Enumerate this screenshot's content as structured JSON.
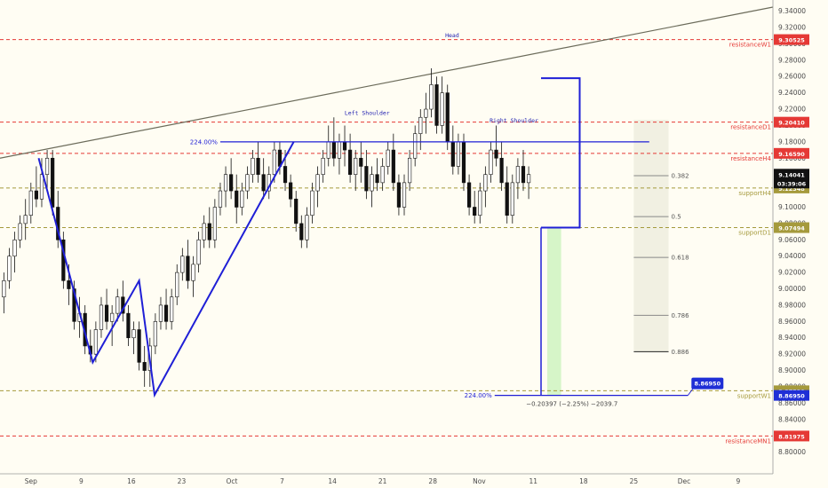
{
  "chart_data": {
    "type": "candlestick",
    "ylim": [
      8.78,
      9.345
    ],
    "x_range": [
      0,
      100
    ],
    "price_ticks": [
      "9.34000",
      "9.32000",
      "9.30000",
      "9.28000",
      "9.26000",
      "9.24000",
      "9.22000",
      "9.20000",
      "9.18000",
      "9.16000",
      "9.14000",
      "9.12000",
      "9.10000",
      "9.08000",
      "9.06000",
      "9.04000",
      "9.02000",
      "9.00000",
      "8.98000",
      "8.96000",
      "8.94000",
      "8.92000",
      "8.90000",
      "8.88000",
      "8.86000",
      "8.84000",
      "8.82000",
      "8.80000"
    ],
    "time_ticks": [
      {
        "label": "Sep",
        "x": 4
      },
      {
        "label": "9",
        "x": 10.5
      },
      {
        "label": "16",
        "x": 17
      },
      {
        "label": "23",
        "x": 23.5
      },
      {
        "label": "Oct",
        "x": 30
      },
      {
        "label": "7",
        "x": 36.5
      },
      {
        "label": "14",
        "x": 43
      },
      {
        "label": "21",
        "x": 49.5
      },
      {
        "label": "28",
        "x": 56
      },
      {
        "label": "Nov",
        "x": 62
      },
      {
        "label": "11",
        "x": 69
      },
      {
        "label": "18",
        "x": 75.5
      },
      {
        "label": "25",
        "x": 82
      },
      {
        "label": "Dec",
        "x": 88.5
      },
      {
        "label": "9",
        "x": 95.5
      }
    ],
    "levels": [
      {
        "name": "resistanceW1",
        "value": "9.30525",
        "price": 9.30525,
        "color": "#e53935",
        "style": "dashed"
      },
      {
        "name": "resistanceD1",
        "value": "9.20410",
        "price": 9.2041,
        "color": "#e53935",
        "style": "dashed"
      },
      {
        "name": "resistanceH4",
        "value": "9.16590",
        "price": 9.1659,
        "color": "#e53935",
        "style": "dashed"
      },
      {
        "name": "supportH4",
        "value": "9.12348",
        "price": 9.12348,
        "color": "#a59a3c",
        "style": "dashed"
      },
      {
        "name": "supportD1",
        "value": "9.07494",
        "price": 9.07494,
        "color": "#a59a3c",
        "style": "dashed"
      },
      {
        "name": "supportW1",
        "value": "8.87520",
        "price": 8.8752,
        "color": "#a59a3c",
        "style": "dashed"
      },
      {
        "name": "resistanceMN1",
        "value": "8.81975",
        "price": 8.81975,
        "color": "#e53935",
        "style": "dashed"
      }
    ],
    "current_price": {
      "value": "9.14041",
      "price": 9.14041,
      "timer": "03:39:06"
    },
    "target": {
      "value": "8.86950",
      "price": 8.8695
    },
    "annotations": [
      {
        "text": "Head",
        "x": 58.5,
        "price": 9.308
      },
      {
        "text": "Left Shoulder",
        "x": 47.5,
        "price": 9.213
      },
      {
        "text": "Right Shoulder",
        "x": 66.5,
        "price": 9.204
      }
    ],
    "neckline": {
      "label": "224.00%",
      "price": 9.18,
      "x_start": 28.5,
      "x_end": 84
    },
    "projection": {
      "label": "224.00%",
      "price": 8.8695,
      "x_start": 64,
      "x_end": 89,
      "stats": "−0.20397 (−2.25%) −2039.7"
    },
    "trendline": {
      "x1": 0,
      "p1": 9.16,
      "x2": 100,
      "p2": 9.345
    },
    "fib": {
      "x1": 82,
      "x2": 86.5,
      "top": 9.207,
      "bottom": 8.923,
      "levels": [
        {
          "label": "0.382",
          "price": 9.1385
        },
        {
          "label": "0.5",
          "price": 9.0885
        },
        {
          "label": "0.618",
          "price": 9.0385
        },
        {
          "label": "0.786",
          "price": 8.9675
        },
        {
          "label": "0.886",
          "price": 8.923
        }
      ]
    },
    "pattern_legs": [
      {
        "points": [
          [
            5,
            9.16
          ],
          [
            12,
            8.91
          ],
          [
            18,
            9.01
          ],
          [
            20,
            8.87
          ],
          [
            38,
            9.18
          ]
        ]
      }
    ],
    "box": {
      "x1": 70,
      "x2": 75,
      "p_top": 9.258,
      "p_bottom": 9.075
    },
    "candles": [
      {
        "x": 0.5,
        "o": 8.99,
        "h": 9.02,
        "l": 8.97,
        "c": 9.01
      },
      {
        "x": 1.2,
        "o": 9.01,
        "h": 9.05,
        "l": 9.0,
        "c": 9.04
      },
      {
        "x": 1.9,
        "o": 9.04,
        "h": 9.07,
        "l": 9.02,
        "c": 9.06
      },
      {
        "x": 2.6,
        "o": 9.06,
        "h": 9.09,
        "l": 9.05,
        "c": 9.08
      },
      {
        "x": 3.3,
        "o": 9.08,
        "h": 9.11,
        "l": 9.06,
        "c": 9.09
      },
      {
        "x": 4.0,
        "o": 9.09,
        "h": 9.13,
        "l": 9.08,
        "c": 9.12
      },
      {
        "x": 4.7,
        "o": 9.12,
        "h": 9.15,
        "l": 9.1,
        "c": 9.11
      },
      {
        "x": 5.4,
        "o": 9.11,
        "h": 9.16,
        "l": 9.1,
        "c": 9.14
      },
      {
        "x": 6.1,
        "o": 9.14,
        "h": 9.17,
        "l": 9.12,
        "c": 9.16
      },
      {
        "x": 6.8,
        "o": 9.16,
        "h": 9.17,
        "l": 9.09,
        "c": 9.1
      },
      {
        "x": 7.5,
        "o": 9.1,
        "h": 9.12,
        "l": 9.05,
        "c": 9.06
      },
      {
        "x": 8.2,
        "o": 9.06,
        "h": 9.07,
        "l": 9.0,
        "c": 9.01
      },
      {
        "x": 8.9,
        "o": 9.01,
        "h": 9.03,
        "l": 8.98,
        "c": 9.0
      },
      {
        "x": 9.6,
        "o": 9.0,
        "h": 9.01,
        "l": 8.95,
        "c": 8.96
      },
      {
        "x": 10.3,
        "o": 8.96,
        "h": 8.99,
        "l": 8.94,
        "c": 8.97
      },
      {
        "x": 11.0,
        "o": 8.97,
        "h": 8.98,
        "l": 8.92,
        "c": 8.93
      },
      {
        "x": 11.7,
        "o": 8.93,
        "h": 8.95,
        "l": 8.91,
        "c": 8.92
      },
      {
        "x": 12.4,
        "o": 8.92,
        "h": 8.96,
        "l": 8.91,
        "c": 8.95
      },
      {
        "x": 13.1,
        "o": 8.95,
        "h": 8.99,
        "l": 8.94,
        "c": 8.98
      },
      {
        "x": 13.8,
        "o": 8.98,
        "h": 9.0,
        "l": 8.95,
        "c": 8.96
      },
      {
        "x": 14.5,
        "o": 8.96,
        "h": 8.98,
        "l": 8.93,
        "c": 8.97
      },
      {
        "x": 15.2,
        "o": 8.97,
        "h": 9.0,
        "l": 8.96,
        "c": 8.99
      },
      {
        "x": 15.9,
        "o": 8.99,
        "h": 9.01,
        "l": 8.96,
        "c": 8.97
      },
      {
        "x": 16.6,
        "o": 8.97,
        "h": 8.98,
        "l": 8.93,
        "c": 8.94
      },
      {
        "x": 17.3,
        "o": 8.94,
        "h": 8.96,
        "l": 8.92,
        "c": 8.95
      },
      {
        "x": 18.0,
        "o": 8.95,
        "h": 8.96,
        "l": 8.9,
        "c": 8.91
      },
      {
        "x": 18.7,
        "o": 8.91,
        "h": 8.93,
        "l": 8.88,
        "c": 8.9
      },
      {
        "x": 19.4,
        "o": 8.9,
        "h": 8.94,
        "l": 8.88,
        "c": 8.93
      },
      {
        "x": 20.1,
        "o": 8.93,
        "h": 8.97,
        "l": 8.92,
        "c": 8.96
      },
      {
        "x": 20.8,
        "o": 8.96,
        "h": 8.99,
        "l": 8.95,
        "c": 8.98
      },
      {
        "x": 21.5,
        "o": 8.98,
        "h": 9.0,
        "l": 8.95,
        "c": 8.96
      },
      {
        "x": 22.2,
        "o": 8.96,
        "h": 9.0,
        "l": 8.95,
        "c": 8.99
      },
      {
        "x": 22.9,
        "o": 8.99,
        "h": 9.03,
        "l": 8.98,
        "c": 9.02
      },
      {
        "x": 23.6,
        "o": 9.02,
        "h": 9.05,
        "l": 9.01,
        "c": 9.04
      },
      {
        "x": 24.3,
        "o": 9.04,
        "h": 9.06,
        "l": 9.0,
        "c": 9.01
      },
      {
        "x": 25.0,
        "o": 9.01,
        "h": 9.04,
        "l": 8.99,
        "c": 9.03
      },
      {
        "x": 25.7,
        "o": 9.03,
        "h": 9.07,
        "l": 9.02,
        "c": 9.06
      },
      {
        "x": 26.4,
        "o": 9.06,
        "h": 9.09,
        "l": 9.05,
        "c": 9.08
      },
      {
        "x": 27.1,
        "o": 9.08,
        "h": 9.1,
        "l": 9.05,
        "c": 9.06
      },
      {
        "x": 27.8,
        "o": 9.06,
        "h": 9.11,
        "l": 9.05,
        "c": 9.1
      },
      {
        "x": 28.5,
        "o": 9.1,
        "h": 9.13,
        "l": 9.09,
        "c": 9.12
      },
      {
        "x": 29.2,
        "o": 9.12,
        "h": 9.15,
        "l": 9.1,
        "c": 9.14
      },
      {
        "x": 29.9,
        "o": 9.14,
        "h": 9.16,
        "l": 9.11,
        "c": 9.12
      },
      {
        "x": 30.6,
        "o": 9.12,
        "h": 9.14,
        "l": 9.08,
        "c": 9.1
      },
      {
        "x": 31.3,
        "o": 9.1,
        "h": 9.13,
        "l": 9.09,
        "c": 9.12
      },
      {
        "x": 32.0,
        "o": 9.12,
        "h": 9.15,
        "l": 9.11,
        "c": 9.14
      },
      {
        "x": 32.7,
        "o": 9.14,
        "h": 9.17,
        "l": 9.13,
        "c": 9.16
      },
      {
        "x": 33.4,
        "o": 9.16,
        "h": 9.18,
        "l": 9.13,
        "c": 9.14
      },
      {
        "x": 34.1,
        "o": 9.14,
        "h": 9.16,
        "l": 9.11,
        "c": 9.12
      },
      {
        "x": 34.8,
        "o": 9.12,
        "h": 9.15,
        "l": 9.11,
        "c": 9.14
      },
      {
        "x": 35.5,
        "o": 9.14,
        "h": 9.18,
        "l": 9.13,
        "c": 9.17
      },
      {
        "x": 36.2,
        "o": 9.17,
        "h": 9.18,
        "l": 9.14,
        "c": 9.15
      },
      {
        "x": 36.9,
        "o": 9.15,
        "h": 9.17,
        "l": 9.12,
        "c": 9.13
      },
      {
        "x": 37.6,
        "o": 9.13,
        "h": 9.14,
        "l": 9.1,
        "c": 9.11
      },
      {
        "x": 38.3,
        "o": 9.11,
        "h": 9.12,
        "l": 9.07,
        "c": 9.08
      },
      {
        "x": 39.0,
        "o": 9.08,
        "h": 9.09,
        "l": 9.05,
        "c": 9.06
      },
      {
        "x": 39.7,
        "o": 9.06,
        "h": 9.1,
        "l": 9.05,
        "c": 9.09
      },
      {
        "x": 40.4,
        "o": 9.09,
        "h": 9.13,
        "l": 9.08,
        "c": 9.12
      },
      {
        "x": 41.1,
        "o": 9.12,
        "h": 9.15,
        "l": 9.1,
        "c": 9.14
      },
      {
        "x": 41.8,
        "o": 9.14,
        "h": 9.17,
        "l": 9.13,
        "c": 9.16
      },
      {
        "x": 42.5,
        "o": 9.16,
        "h": 9.2,
        "l": 9.15,
        "c": 9.18
      },
      {
        "x": 43.2,
        "o": 9.18,
        "h": 9.21,
        "l": 9.15,
        "c": 9.16
      },
      {
        "x": 43.9,
        "o": 9.16,
        "h": 9.19,
        "l": 9.14,
        "c": 9.18
      },
      {
        "x": 44.6,
        "o": 9.18,
        "h": 9.2,
        "l": 9.15,
        "c": 9.17
      },
      {
        "x": 45.3,
        "o": 9.17,
        "h": 9.19,
        "l": 9.13,
        "c": 9.14
      },
      {
        "x": 46.0,
        "o": 9.14,
        "h": 9.17,
        "l": 9.12,
        "c": 9.16
      },
      {
        "x": 46.7,
        "o": 9.16,
        "h": 9.18,
        "l": 9.13,
        "c": 9.15
      },
      {
        "x": 47.4,
        "o": 9.15,
        "h": 9.17,
        "l": 9.11,
        "c": 9.12
      },
      {
        "x": 48.1,
        "o": 9.12,
        "h": 9.15,
        "l": 9.1,
        "c": 9.14
      },
      {
        "x": 48.8,
        "o": 9.14,
        "h": 9.16,
        "l": 9.12,
        "c": 9.13
      },
      {
        "x": 49.5,
        "o": 9.13,
        "h": 9.16,
        "l": 9.12,
        "c": 9.15
      },
      {
        "x": 50.2,
        "o": 9.15,
        "h": 9.18,
        "l": 9.14,
        "c": 9.17
      },
      {
        "x": 50.9,
        "o": 9.17,
        "h": 9.19,
        "l": 9.12,
        "c": 9.13
      },
      {
        "x": 51.6,
        "o": 9.13,
        "h": 9.14,
        "l": 9.09,
        "c": 9.1
      },
      {
        "x": 52.3,
        "o": 9.1,
        "h": 9.14,
        "l": 9.09,
        "c": 9.13
      },
      {
        "x": 53.0,
        "o": 9.13,
        "h": 9.17,
        "l": 9.12,
        "c": 9.16
      },
      {
        "x": 53.7,
        "o": 9.16,
        "h": 9.2,
        "l": 9.15,
        "c": 9.19
      },
      {
        "x": 54.4,
        "o": 9.19,
        "h": 9.22,
        "l": 9.17,
        "c": 9.21
      },
      {
        "x": 55.1,
        "o": 9.21,
        "h": 9.24,
        "l": 9.19,
        "c": 9.22
      },
      {
        "x": 55.8,
        "o": 9.22,
        "h": 9.27,
        "l": 9.21,
        "c": 9.25
      },
      {
        "x": 56.5,
        "o": 9.25,
        "h": 9.26,
        "l": 9.19,
        "c": 9.2
      },
      {
        "x": 57.2,
        "o": 9.2,
        "h": 9.26,
        "l": 9.19,
        "c": 9.24
      },
      {
        "x": 57.9,
        "o": 9.24,
        "h": 9.25,
        "l": 9.17,
        "c": 9.18
      },
      {
        "x": 58.6,
        "o": 9.18,
        "h": 9.2,
        "l": 9.14,
        "c": 9.15
      },
      {
        "x": 59.3,
        "o": 9.15,
        "h": 9.19,
        "l": 9.14,
        "c": 9.18
      },
      {
        "x": 60.0,
        "o": 9.18,
        "h": 9.19,
        "l": 9.12,
        "c": 9.13
      },
      {
        "x": 60.7,
        "o": 9.13,
        "h": 9.14,
        "l": 9.09,
        "c": 9.1
      },
      {
        "x": 61.4,
        "o": 9.1,
        "h": 9.12,
        "l": 9.08,
        "c": 9.09
      },
      {
        "x": 62.1,
        "o": 9.09,
        "h": 9.13,
        "l": 9.08,
        "c": 9.12
      },
      {
        "x": 62.8,
        "o": 9.12,
        "h": 9.15,
        "l": 9.1,
        "c": 9.14
      },
      {
        "x": 63.5,
        "o": 9.14,
        "h": 9.18,
        "l": 9.13,
        "c": 9.17
      },
      {
        "x": 64.2,
        "o": 9.17,
        "h": 9.2,
        "l": 9.15,
        "c": 9.16
      },
      {
        "x": 64.9,
        "o": 9.16,
        "h": 9.18,
        "l": 9.12,
        "c": 9.13
      },
      {
        "x": 65.6,
        "o": 9.13,
        "h": 9.15,
        "l": 9.08,
        "c": 9.09
      },
      {
        "x": 66.3,
        "o": 9.09,
        "h": 9.14,
        "l": 9.08,
        "c": 9.13
      },
      {
        "x": 67.0,
        "o": 9.13,
        "h": 9.16,
        "l": 9.11,
        "c": 9.15
      },
      {
        "x": 67.7,
        "o": 9.15,
        "h": 9.17,
        "l": 9.12,
        "c": 9.13
      },
      {
        "x": 68.4,
        "o": 9.13,
        "h": 9.15,
        "l": 9.11,
        "c": 9.14
      }
    ]
  },
  "labels": {
    "head": "Head",
    "left_shoulder": "Left Shoulder",
    "right_shoulder": "Right Shoulder",
    "neck_pct": "224.00%",
    "proj_pct": "224.00%",
    "proj_stats": "−0.20397 (−2.25%) −2039.7"
  },
  "colors": {
    "background": "#fffdf3",
    "bull_candle": "#ffffff",
    "bear_candle": "#111111",
    "pattern_line": "#1f1fd6",
    "trendline": "#6b6b5a",
    "badge_current": "#111111",
    "badge_target": "#1f2fd6",
    "target_green": "#d6f5c8",
    "fib_fill": "#ecebdc"
  }
}
